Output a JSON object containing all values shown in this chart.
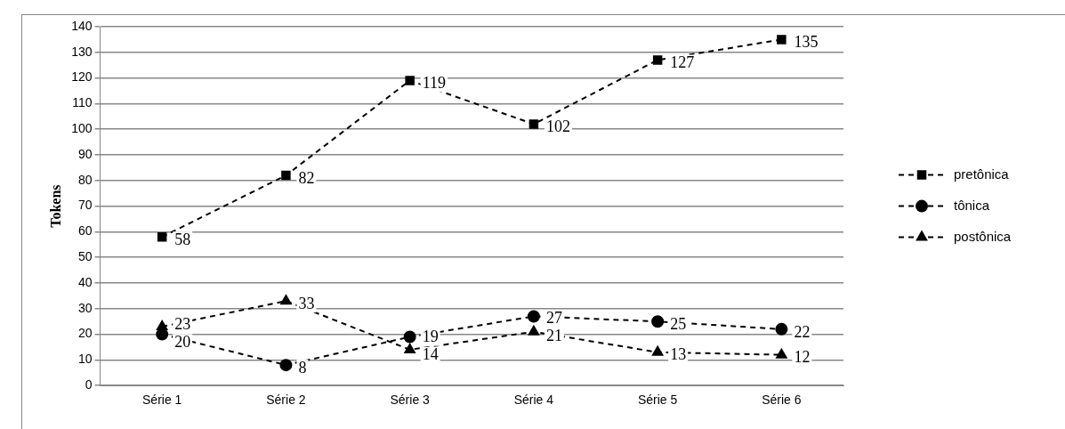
{
  "chart_data": {
    "type": "line",
    "ylabel": "Tokens",
    "categories": [
      "Série 1",
      "Série 2",
      "Série 3",
      "Série 4",
      "Série 5",
      "Série 6"
    ],
    "series": [
      {
        "name": "pretônica",
        "color": "#000000",
        "marker": "square",
        "values": [
          58,
          82,
          119,
          102,
          127,
          135
        ]
      },
      {
        "name": "tônica",
        "color": "#000000",
        "marker": "circle",
        "values": [
          20,
          8,
          19,
          27,
          25,
          22
        ]
      },
      {
        "name": "postônica",
        "color": "#000000",
        "marker": "triangle",
        "values": [
          23,
          33,
          14,
          21,
          13,
          12
        ]
      }
    ],
    "ylim": [
      0,
      140
    ],
    "yticks": [
      0,
      10,
      20,
      30,
      40,
      50,
      60,
      70,
      80,
      90,
      100,
      110,
      120,
      130,
      140
    ],
    "grid": "y",
    "legend": "right",
    "line_style": "dashed",
    "data_labels": true
  }
}
